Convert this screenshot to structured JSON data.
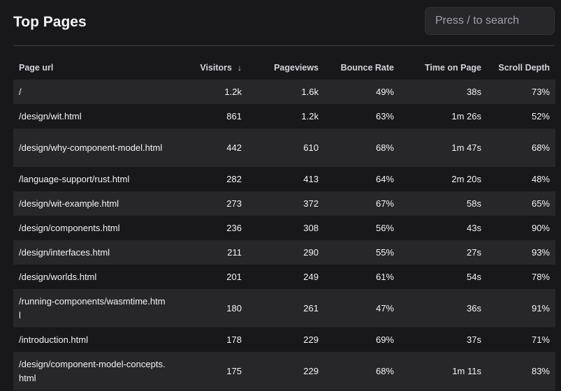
{
  "header": {
    "title": "Top Pages",
    "search_placeholder": "Press / to search"
  },
  "table": {
    "columns": [
      {
        "label": "Page url"
      },
      {
        "label": "Visitors",
        "sort_indicator": "↓"
      },
      {
        "label": "Pageviews"
      },
      {
        "label": "Bounce Rate"
      },
      {
        "label": "Time on Page"
      },
      {
        "label": "Scroll Depth"
      }
    ],
    "rows": [
      {
        "url": "/",
        "visitors": "1.2k",
        "pageviews": "1.6k",
        "bounce_rate": "49%",
        "time_on_page": "38s",
        "scroll_depth": "73%"
      },
      {
        "url": "/design/wit.html",
        "visitors": "861",
        "pageviews": "1.2k",
        "bounce_rate": "63%",
        "time_on_page": "1m 26s",
        "scroll_depth": "52%"
      },
      {
        "url": "/design/why-component-model.html",
        "visitors": "442",
        "pageviews": "610",
        "bounce_rate": "68%",
        "time_on_page": "1m 47s",
        "scroll_depth": "68%"
      },
      {
        "url": "/language-support/rust.html",
        "visitors": "282",
        "pageviews": "413",
        "bounce_rate": "64%",
        "time_on_page": "2m 20s",
        "scroll_depth": "48%"
      },
      {
        "url": "/design/wit-example.html",
        "visitors": "273",
        "pageviews": "372",
        "bounce_rate": "67%",
        "time_on_page": "58s",
        "scroll_depth": "65%"
      },
      {
        "url": "/design/components.html",
        "visitors": "236",
        "pageviews": "308",
        "bounce_rate": "56%",
        "time_on_page": "43s",
        "scroll_depth": "90%"
      },
      {
        "url": "/design/interfaces.html",
        "visitors": "211",
        "pageviews": "290",
        "bounce_rate": "55%",
        "time_on_page": "27s",
        "scroll_depth": "93%"
      },
      {
        "url": "/design/worlds.html",
        "visitors": "201",
        "pageviews": "249",
        "bounce_rate": "61%",
        "time_on_page": "54s",
        "scroll_depth": "78%"
      },
      {
        "url": "/running-components/wasmtime.html",
        "visitors": "180",
        "pageviews": "261",
        "bounce_rate": "47%",
        "time_on_page": "36s",
        "scroll_depth": "91%"
      },
      {
        "url": "/introduction.html",
        "visitors": "178",
        "pageviews": "229",
        "bounce_rate": "69%",
        "time_on_page": "37s",
        "scroll_depth": "71%"
      },
      {
        "url": "/design/component-model-concepts.html",
        "visitors": "175",
        "pageviews": "229",
        "bounce_rate": "68%",
        "time_on_page": "1m 11s",
        "scroll_depth": "83%"
      }
    ]
  },
  "colors": {
    "background": "#18181b",
    "row_stripe": "#27272a",
    "text": "#f4f4f5",
    "muted_text": "#a1a1aa"
  }
}
